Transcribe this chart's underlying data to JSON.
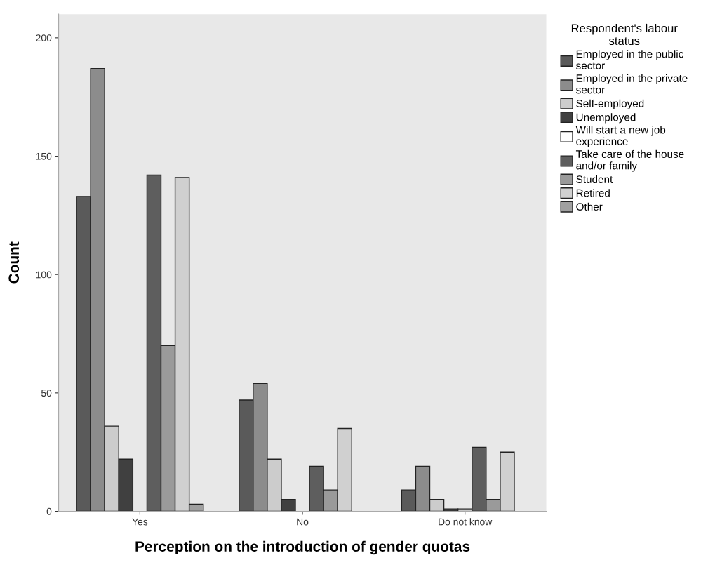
{
  "chart_data": {
    "type": "bar",
    "xlabel": "Perception on the introduction of gender quotas",
    "ylabel": "Count",
    "legend_title": "Respondent's labour\nstatus",
    "categories": [
      "Yes",
      "No",
      "Do not know"
    ],
    "series": [
      {
        "name": "Employed in the public\nsector",
        "color": "#5a5a5a",
        "values": [
          133,
          47,
          9
        ]
      },
      {
        "name": "Employed in the private\nsector",
        "color": "#8c8c8c",
        "values": [
          187,
          54,
          19
        ]
      },
      {
        "name": "Self-employed",
        "color": "#cccccc",
        "values": [
          36,
          22,
          5
        ]
      },
      {
        "name": "Unemployed",
        "color": "#404040",
        "values": [
          22,
          5,
          1
        ]
      },
      {
        "name": "Will start a new job\nexperience",
        "color": "#ffffff",
        "values": [
          0,
          0,
          1
        ]
      },
      {
        "name": "Take care of the house\nand/or family",
        "color": "#5e5e5e",
        "values": [
          142,
          19,
          27
        ]
      },
      {
        "name": "Student",
        "color": "#9a9a9a",
        "values": [
          70,
          9,
          5
        ]
      },
      {
        "name": "Retired",
        "color": "#d0d0d0",
        "values": [
          141,
          35,
          25
        ]
      },
      {
        "name": "Other",
        "color": "#a0a0a0",
        "values": [
          3,
          0,
          0
        ]
      }
    ],
    "ylim": [
      0,
      210
    ],
    "yticks": [
      0,
      50,
      100,
      150,
      200
    ],
    "grid": false,
    "legend": "right"
  }
}
